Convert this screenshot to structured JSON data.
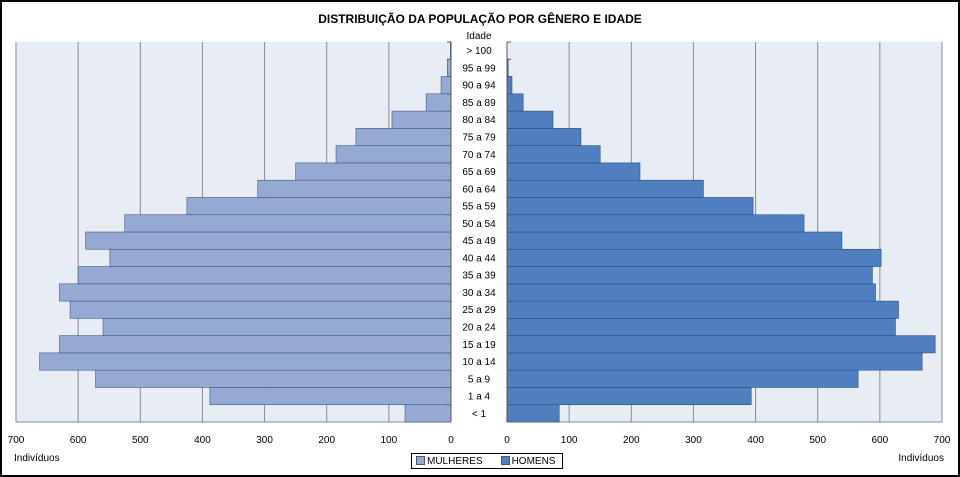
{
  "chart_data": {
    "type": "bar",
    "orientation": "horizontal-pyramid",
    "title": "DISTRIBUIÇÃO DA POPULAÇÃO POR GÊNERO E IDADE",
    "category_label": "Idade",
    "xlabel_left": "Indivíduos",
    "xlabel_right": "Indivíduos",
    "xlim": [
      0,
      700
    ],
    "xticks": [
      0,
      100,
      200,
      300,
      400,
      500,
      600,
      700
    ],
    "grid": true,
    "legend": "bottom",
    "categories": [
      "< 1",
      "1 a 4",
      "5 a 9",
      "10 a 14",
      "15 a 19",
      "20 a 24",
      "25 a 29",
      "30 a 34",
      "35 a 39",
      "40 a 44",
      "45 a 49",
      "50 a 54",
      "55 a 59",
      "60 a 64",
      "65 a 69",
      "70 a 74",
      "75 a 79",
      "80 a 84",
      "85 a 89",
      "90 a 94",
      "95 a 99",
      "> 100"
    ],
    "series": [
      {
        "name": "MULHERES",
        "side": "left",
        "color": "#95a9d3",
        "values": [
          74,
          388,
          572,
          662,
          630,
          560,
          613,
          630,
          600,
          549,
          588,
          525,
          425,
          311,
          250,
          185,
          153,
          95,
          40,
          16,
          6,
          1
        ]
      },
      {
        "name": "HOMENS",
        "side": "right",
        "color": "#4f7fbf",
        "values": [
          84,
          393,
          565,
          668,
          689,
          625,
          630,
          593,
          588,
          602,
          539,
          478,
          396,
          316,
          214,
          150,
          119,
          74,
          26,
          8,
          2,
          0
        ]
      }
    ]
  }
}
